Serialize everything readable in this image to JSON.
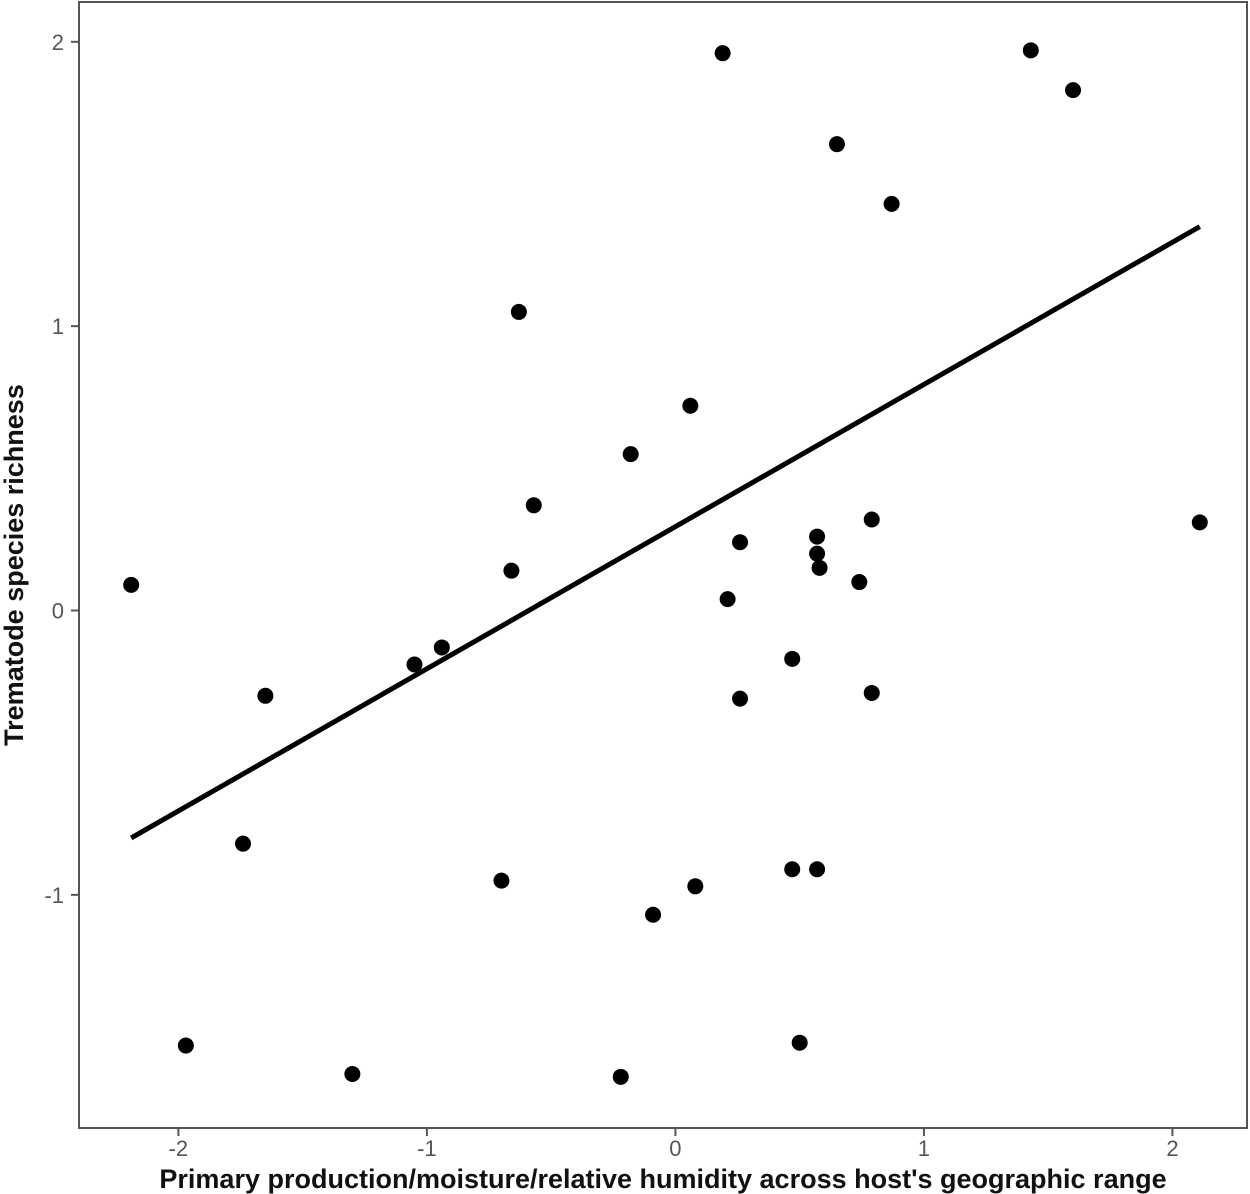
{
  "chart_data": {
    "type": "scatter",
    "title": "",
    "xlabel": "Primary production/moisture/relative humidity across host's geographic range",
    "ylabel": "Trematode species richness",
    "xlim": [
      -2.4,
      2.3
    ],
    "ylim": [
      -1.82,
      2.14
    ],
    "x_ticks": [
      -2,
      -1,
      0,
      1,
      2
    ],
    "y_ticks": [
      -1,
      0,
      1,
      2
    ],
    "x_tick_labels": [
      "-2",
      "-1",
      "0",
      "1",
      "2"
    ],
    "y_tick_labels": [
      "-1",
      "0",
      "1",
      "2"
    ],
    "grid": false,
    "legend": "none",
    "marker_color": "#000000",
    "points": [
      {
        "x": -2.19,
        "y": 0.09
      },
      {
        "x": -1.97,
        "y": -1.53
      },
      {
        "x": -1.74,
        "y": -0.82
      },
      {
        "x": -1.65,
        "y": -0.3
      },
      {
        "x": -1.3,
        "y": -1.63
      },
      {
        "x": -1.05,
        "y": -0.19
      },
      {
        "x": -0.94,
        "y": -0.13
      },
      {
        "x": -0.7,
        "y": -0.95
      },
      {
        "x": -0.66,
        "y": 0.14
      },
      {
        "x": -0.63,
        "y": 1.05
      },
      {
        "x": -0.57,
        "y": 0.37
      },
      {
        "x": -0.22,
        "y": -1.64
      },
      {
        "x": -0.18,
        "y": 0.55
      },
      {
        "x": -0.09,
        "y": -1.07
      },
      {
        "x": 0.06,
        "y": 0.72
      },
      {
        "x": 0.08,
        "y": -0.97
      },
      {
        "x": 0.19,
        "y": 1.96
      },
      {
        "x": 0.21,
        "y": 0.04
      },
      {
        "x": 0.26,
        "y": 0.24
      },
      {
        "x": 0.26,
        "y": -0.31
      },
      {
        "x": 0.47,
        "y": -0.17
      },
      {
        "x": 0.47,
        "y": -0.91
      },
      {
        "x": 0.5,
        "y": -1.52
      },
      {
        "x": 0.57,
        "y": 0.26
      },
      {
        "x": 0.57,
        "y": 0.2
      },
      {
        "x": 0.58,
        "y": 0.15
      },
      {
        "x": 0.57,
        "y": -0.91
      },
      {
        "x": 0.65,
        "y": 1.64
      },
      {
        "x": 0.74,
        "y": 0.1
      },
      {
        "x": 0.79,
        "y": 0.32
      },
      {
        "x": 0.79,
        "y": -0.29
      },
      {
        "x": 0.87,
        "y": 1.43
      },
      {
        "x": 1.43,
        "y": 1.97
      },
      {
        "x": 1.6,
        "y": 1.83
      },
      {
        "x": 2.11,
        "y": 0.31
      }
    ],
    "fit_line": {
      "x": [
        -2.19,
        2.11
      ],
      "y": [
        -0.8,
        1.35
      ]
    }
  }
}
